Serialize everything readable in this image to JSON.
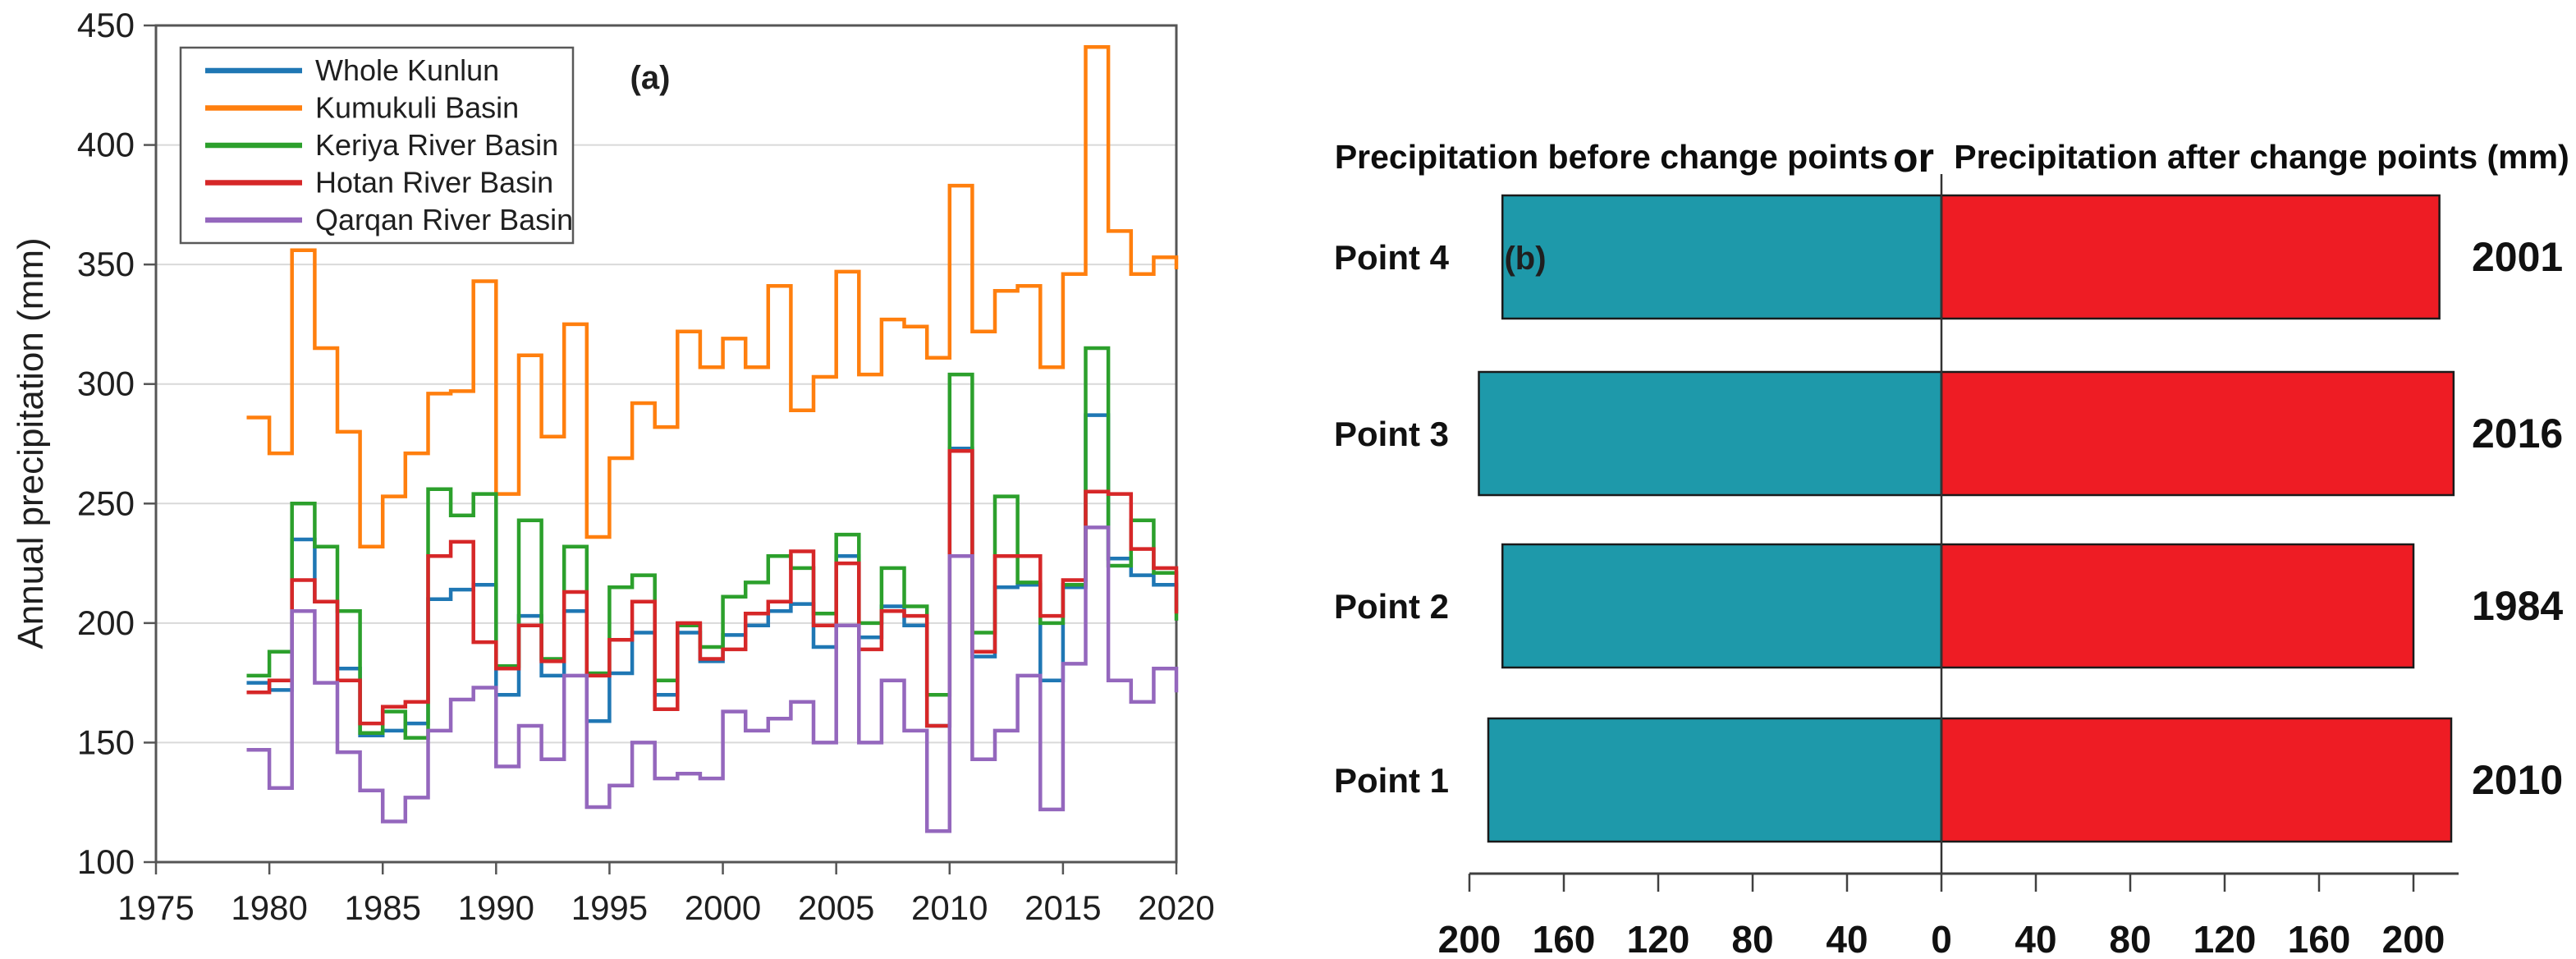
{
  "figure": {
    "background": "#FFFFFF"
  },
  "chart_data": [
    {
      "type": "line",
      "subtype": "step",
      "panel_label": "(a)",
      "ylabel": "Annual precipitation (mm)",
      "xlim": [
        1975,
        2020
      ],
      "ylim": [
        100,
        450
      ],
      "xticks": [
        1975,
        1980,
        1985,
        1990,
        1995,
        2000,
        2005,
        2010,
        2015,
        2020
      ],
      "yticks": [
        100,
        150,
        200,
        250,
        300,
        350,
        400,
        450
      ],
      "grid": "horizontal",
      "legend_position": "top-left",
      "x": [
        1979,
        1980,
        1981,
        1982,
        1983,
        1984,
        1985,
        1986,
        1987,
        1988,
        1989,
        1990,
        1991,
        1992,
        1993,
        1994,
        1995,
        1996,
        1997,
        1998,
        1999,
        2000,
        2001,
        2002,
        2003,
        2004,
        2005,
        2006,
        2007,
        2008,
        2009,
        2010,
        2011,
        2012,
        2013,
        2014,
        2015,
        2016,
        2017,
        2018,
        2019,
        2020
      ],
      "series": [
        {
          "name": "Whole Kunlun",
          "color": "#1F77B4",
          "values": [
            175,
            172,
            235,
            209,
            181,
            153,
            155,
            158,
            210,
            214,
            216,
            170,
            203,
            178,
            205,
            159,
            179,
            196,
            170,
            196,
            184,
            195,
            199,
            205,
            208,
            190,
            228,
            194,
            207,
            199,
            157,
            273,
            186,
            215,
            216,
            176,
            215,
            287,
            227,
            220,
            216,
            205
          ]
        },
        {
          "name": "Kumukuli Basin",
          "color": "#FF7F0E",
          "values": [
            286,
            271,
            356,
            315,
            280,
            232,
            253,
            271,
            296,
            297,
            343,
            254,
            312,
            278,
            325,
            236,
            269,
            292,
            282,
            322,
            307,
            319,
            307,
            341,
            289,
            303,
            347,
            304,
            327,
            324,
            311,
            383,
            322,
            339,
            341,
            307,
            346,
            441,
            364,
            346,
            353,
            348
          ]
        },
        {
          "name": "Keriya River Basin",
          "color": "#2CA02C",
          "values": [
            178,
            188,
            250,
            232,
            205,
            154,
            163,
            152,
            256,
            245,
            254,
            182,
            243,
            185,
            232,
            179,
            215,
            220,
            176,
            199,
            190,
            211,
            217,
            228,
            223,
            204,
            237,
            200,
            223,
            207,
            170,
            304,
            196,
            253,
            217,
            200,
            216,
            315,
            224,
            243,
            221,
            201
          ]
        },
        {
          "name": "Hotan River Basin",
          "color": "#D62728",
          "values": [
            171,
            176,
            218,
            209,
            176,
            158,
            165,
            167,
            228,
            234,
            192,
            181,
            199,
            184,
            213,
            178,
            193,
            209,
            164,
            200,
            185,
            189,
            204,
            209,
            230,
            199,
            225,
            189,
            205,
            203,
            157,
            272,
            188,
            228,
            228,
            203,
            218,
            255,
            254,
            231,
            223,
            204
          ]
        },
        {
          "name": "Qarqan River Basin",
          "color": "#9467BD",
          "values": [
            147,
            131,
            205,
            175,
            146,
            130,
            117,
            127,
            155,
            168,
            173,
            140,
            157,
            143,
            178,
            123,
            132,
            150,
            135,
            137,
            135,
            163,
            155,
            160,
            167,
            150,
            199,
            150,
            176,
            155,
            113,
            228,
            143,
            155,
            178,
            122,
            183,
            240,
            176,
            167,
            181,
            171
          ]
        }
      ]
    },
    {
      "type": "bar",
      "subtype": "diverging-horizontal",
      "panel_label": "(b)",
      "title_left": "Precipitation before change points",
      "title_or": "or",
      "title_right": "Precipitation after change points (mm)",
      "categories": [
        "Point 4",
        "Point 3",
        "Point 2",
        "Point 1"
      ],
      "series": [
        {
          "name": "Precipitation before change points",
          "color": "#1E99AA",
          "values": [
            186,
            196,
            186,
            192
          ]
        },
        {
          "name": "Precipitation after change points (mm)",
          "color": "#EE1C24",
          "values": [
            211,
            217,
            200,
            216
          ]
        }
      ],
      "year_labels": [
        "2001",
        "2016",
        "1984",
        "2010"
      ],
      "xtick_values": [
        -200,
        -160,
        -120,
        -80,
        -40,
        0,
        40,
        80,
        120,
        160,
        200
      ],
      "xtick_labels": [
        "200",
        "160",
        "120",
        "80",
        "40",
        "0",
        "40",
        "80",
        "120",
        "160",
        "200"
      ],
      "xlim": [
        -210,
        219
      ]
    }
  ]
}
